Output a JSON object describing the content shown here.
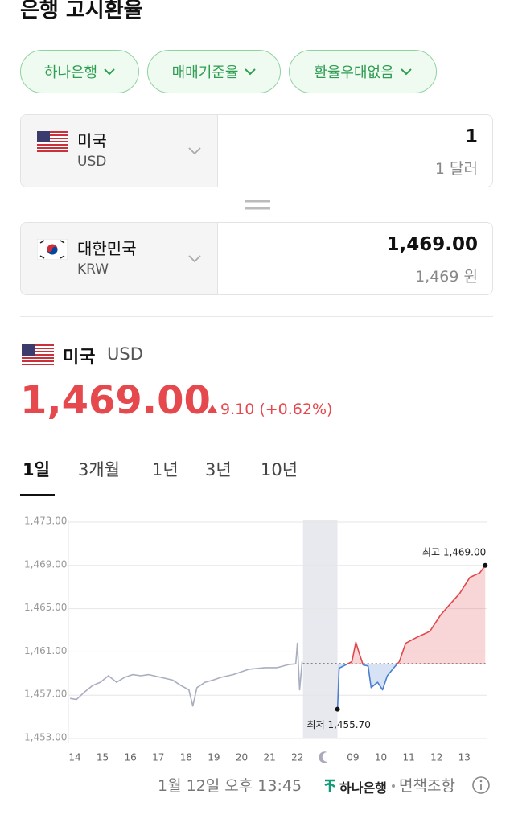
{
  "header": {
    "title": "은행 고시환율"
  },
  "filters": [
    "하나은행",
    "매매기준율",
    "환율우대없음"
  ],
  "converter": {
    "from": {
      "country": "미국",
      "code": "USD",
      "amount": "1",
      "amount_text": "1 달러"
    },
    "to": {
      "country": "대한민국",
      "code": "KRW",
      "amount": "1,469.00",
      "amount_text": "1,469 원"
    }
  },
  "quote": {
    "country": "미국",
    "code": "USD",
    "rate": "1,469.00",
    "change": "9.10 (+0.62%)"
  },
  "tabs": [
    "1일",
    "3개월",
    "1년",
    "3년",
    "10년"
  ],
  "chart_data": {
    "type": "line",
    "categories": [
      "14",
      "15",
      "16",
      "17",
      "18",
      "19",
      "20",
      "21",
      "22",
      null,
      "09",
      "10",
      "11",
      "12",
      "13"
    ],
    "xlim": [
      -0.23,
      14.8
    ],
    "ylim": [
      1453,
      1473
    ],
    "yticks": [
      {
        "value": 1453,
        "label": "1,453.00"
      },
      {
        "value": 1457,
        "label": "1,457.00"
      },
      {
        "value": 1461,
        "label": "1,461.00"
      },
      {
        "value": 1465,
        "label": "1,465.00"
      },
      {
        "value": 1469,
        "label": "1,469.00"
      },
      {
        "value": 1473,
        "label": "1,473.00"
      }
    ],
    "grid": true,
    "closed_band": [
      8.2,
      9.44
    ],
    "baseline": 1459.9,
    "color_above": "#e0474c",
    "color_below": "#4a7fd0",
    "series": [
      {
        "color": "#a9aec0",
        "x": [
          -0.17,
          0.06,
          0.35,
          0.64,
          0.92,
          1.21,
          1.5,
          1.79,
          2.08,
          2.37,
          2.66,
          3.09,
          3.52,
          3.81,
          4.1,
          4.24,
          4.39,
          4.68,
          4.97,
          5.25,
          5.69,
          6.26,
          6.84,
          7.27,
          7.71,
          7.94,
          8.0,
          8.08,
          8.17
        ],
        "values": [
          1456.7,
          1456.6,
          1457.3,
          1457.9,
          1458.2,
          1458.8,
          1458.2,
          1458.65,
          1458.9,
          1458.8,
          1458.9,
          1458.65,
          1458.4,
          1457.9,
          1457.5,
          1456.0,
          1457.7,
          1458.2,
          1458.4,
          1458.65,
          1458.9,
          1459.4,
          1459.55,
          1459.55,
          1459.85,
          1459.9,
          1461.8,
          1457.5,
          1460.1
        ]
      },
      {
        "color": "split",
        "x": [
          9.44,
          9.5,
          9.73,
          9.96,
          10.1,
          10.22,
          10.36,
          10.54,
          10.65,
          10.88,
          11.06,
          11.23,
          11.52,
          11.66,
          11.89,
          12.33,
          12.76,
          13.14,
          13.48,
          13.83,
          14.2,
          14.55,
          14.75
        ],
        "values": [
          1455.7,
          1459.5,
          1459.8,
          1460.1,
          1461.9,
          1460.9,
          1459.8,
          1459.7,
          1457.7,
          1458.2,
          1457.5,
          1458.8,
          1459.7,
          1460.1,
          1461.8,
          1462.4,
          1462.9,
          1464.4,
          1465.4,
          1466.4,
          1467.9,
          1468.3,
          1469.0
        ]
      }
    ],
    "annotations": [
      {
        "text": "최고 1,469.00",
        "x": 14.75,
        "y": 1469.0
      },
      {
        "text": "최저 1,455.70",
        "x": 9.44,
        "y": 1455.7
      }
    ]
  },
  "footer": {
    "timestamp": "1월 12일 오후 13:45",
    "bank": "하나은행",
    "disclaimer": "면책조항"
  }
}
